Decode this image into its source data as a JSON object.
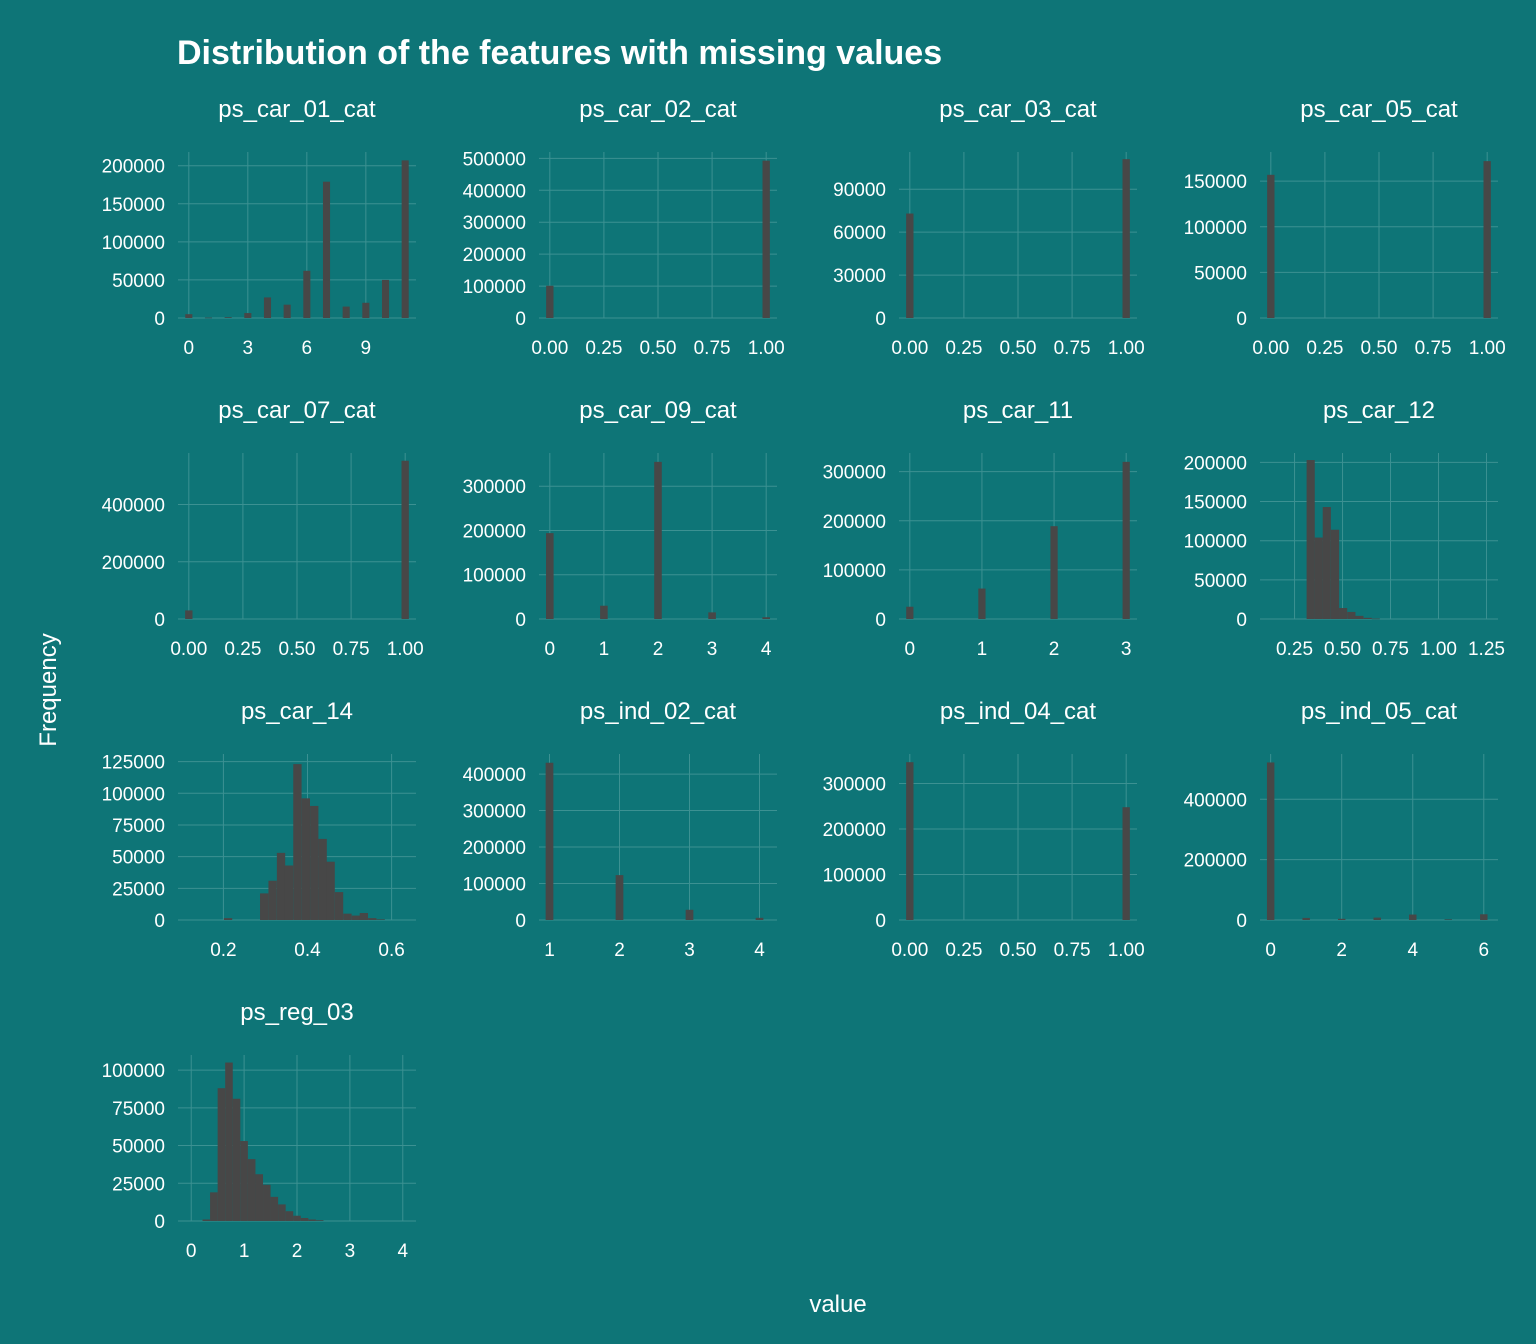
{
  "figure": {
    "title": "Distribution of the features with missing values",
    "xlabel": "value",
    "ylabel": "Frequency",
    "colors": {
      "background": "#0e7577",
      "bar": "#474747",
      "grid": "#3c9192",
      "text": "#ffffff"
    }
  },
  "chart_data": [
    {
      "type": "bar",
      "title": "ps_car_01_cat",
      "grid": true,
      "xlim": [
        -0.55,
        11.55
      ],
      "ylim": [
        0,
        218000
      ],
      "xticks": [
        0,
        3,
        6,
        9
      ],
      "xtick_labels": [
        "0",
        "3",
        "6",
        "9"
      ],
      "yticks": [
        0,
        50000,
        100000,
        150000,
        200000
      ],
      "ytick_labels": [
        "0",
        "50000",
        "100000",
        "150000",
        "200000"
      ],
      "bar_width": 0.36,
      "x": [
        0,
        1,
        2,
        3,
        4,
        5,
        6,
        7,
        8,
        9,
        10,
        11
      ],
      "values": [
        5000,
        500,
        1000,
        6500,
        27000,
        17500,
        62000,
        179000,
        15000,
        20000,
        50000,
        207000
      ]
    },
    {
      "type": "bar",
      "title": "ps_car_02_cat",
      "grid": true,
      "xlim": [
        -0.05,
        1.05
      ],
      "ylim": [
        0,
        520000
      ],
      "xticks": [
        0,
        0.25,
        0.5,
        0.75,
        1
      ],
      "xtick_labels": [
        "0.00",
        "0.25",
        "0.50",
        "0.75",
        "1.00"
      ],
      "yticks": [
        0,
        100000,
        200000,
        300000,
        400000,
        500000
      ],
      "ytick_labels": [
        "0",
        "100000",
        "200000",
        "300000",
        "400000",
        "500000"
      ],
      "bar_width": 0.034,
      "x": [
        0,
        1
      ],
      "values": [
        101000,
        493000
      ]
    },
    {
      "type": "bar",
      "title": "ps_car_03_cat",
      "grid": true,
      "xlim": [
        -0.05,
        1.05
      ],
      "ylim": [
        0,
        116000
      ],
      "xticks": [
        0,
        0.25,
        0.5,
        0.75,
        1
      ],
      "xtick_labels": [
        "0.00",
        "0.25",
        "0.50",
        "0.75",
        "1.00"
      ],
      "yticks": [
        0,
        30000,
        60000,
        90000
      ],
      "ytick_labels": [
        "0",
        "30000",
        "60000",
        "90000"
      ],
      "bar_width": 0.034,
      "x": [
        0,
        1
      ],
      "values": [
        73000,
        111000
      ]
    },
    {
      "type": "bar",
      "title": "ps_car_05_cat",
      "grid": true,
      "xlim": [
        -0.05,
        1.05
      ],
      "ylim": [
        0,
        182000
      ],
      "xticks": [
        0,
        0.25,
        0.5,
        0.75,
        1
      ],
      "xtick_labels": [
        "0.00",
        "0.25",
        "0.50",
        "0.75",
        "1.00"
      ],
      "yticks": [
        0,
        50000,
        100000,
        150000
      ],
      "ytick_labels": [
        "0",
        "50000",
        "100000",
        "150000"
      ],
      "bar_width": 0.034,
      "x": [
        0,
        1
      ],
      "values": [
        157000,
        172000
      ]
    },
    {
      "type": "bar",
      "title": "ps_car_07_cat",
      "grid": true,
      "xlim": [
        -0.05,
        1.05
      ],
      "ylim": [
        0,
        580000
      ],
      "xticks": [
        0,
        0.25,
        0.5,
        0.75,
        1
      ],
      "xtick_labels": [
        "0.00",
        "0.25",
        "0.50",
        "0.75",
        "1.00"
      ],
      "yticks": [
        0,
        200000,
        400000
      ],
      "ytick_labels": [
        "0",
        "200000",
        "400000"
      ],
      "bar_width": 0.034,
      "x": [
        0,
        1
      ],
      "values": [
        30000,
        553000
      ]
    },
    {
      "type": "bar",
      "title": "ps_car_09_cat",
      "grid": true,
      "xlim": [
        -0.2,
        4.2
      ],
      "ylim": [
        0,
        375000
      ],
      "xticks": [
        0,
        1,
        2,
        3,
        4
      ],
      "xtick_labels": [
        "0",
        "1",
        "2",
        "3",
        "4"
      ],
      "yticks": [
        0,
        100000,
        200000,
        300000
      ],
      "ytick_labels": [
        "0",
        "100000",
        "200000",
        "300000"
      ],
      "bar_width": 0.14,
      "x": [
        0,
        1,
        2,
        3,
        4
      ],
      "values": [
        194000,
        30000,
        355000,
        15000,
        4000
      ]
    },
    {
      "type": "bar",
      "title": "ps_car_11",
      "grid": true,
      "xlim": [
        -0.15,
        3.15
      ],
      "ylim": [
        0,
        338000
      ],
      "xticks": [
        0,
        1,
        2,
        3
      ],
      "xtick_labels": [
        "0",
        "1",
        "2",
        "3"
      ],
      "yticks": [
        0,
        100000,
        200000,
        300000
      ],
      "ytick_labels": [
        "0",
        "100000",
        "200000",
        "300000"
      ],
      "bar_width": 0.1,
      "x": [
        0,
        1,
        2,
        3
      ],
      "values": [
        25000,
        62000,
        189000,
        320000
      ]
    },
    {
      "type": "bar",
      "title": "ps_car_12",
      "grid": true,
      "xlim": [
        0.07,
        1.31
      ],
      "ylim": [
        0,
        212000
      ],
      "xticks": [
        0.25,
        0.5,
        0.75,
        1,
        1.25
      ],
      "xtick_labels": [
        "0.25",
        "0.50",
        "0.75",
        "1.00",
        "1.25"
      ],
      "yticks": [
        0,
        50000,
        100000,
        150000,
        200000
      ],
      "ytick_labels": [
        "0",
        "50000",
        "100000",
        "150000",
        "200000"
      ],
      "bar_width": 0.0425,
      "x": [
        0.334,
        0.376,
        0.418,
        0.461,
        0.503,
        0.546,
        0.588,
        0.631,
        0.673
      ],
      "values": [
        203000,
        104000,
        143000,
        114000,
        14000,
        9000,
        4000,
        1500,
        500
      ]
    },
    {
      "type": "bar",
      "title": "ps_car_14",
      "grid": true,
      "xlim": [
        0.092,
        0.658
      ],
      "ylim": [
        0,
        131000
      ],
      "xticks": [
        0.2,
        0.4,
        0.6
      ],
      "xtick_labels": [
        "0.2",
        "0.4",
        "0.6"
      ],
      "yticks": [
        0,
        25000,
        50000,
        75000,
        100000,
        125000
      ],
      "ytick_labels": [
        "0",
        "25000",
        "50000",
        "75000",
        "100000",
        "125000"
      ],
      "bar_width": 0.0198,
      "x": [
        0.211,
        0.297,
        0.317,
        0.337,
        0.356,
        0.376,
        0.396,
        0.416,
        0.436,
        0.455,
        0.475,
        0.495,
        0.515,
        0.534,
        0.554,
        0.574
      ],
      "values": [
        1500,
        21000,
        31000,
        53000,
        43000,
        123000,
        96000,
        90000,
        64000,
        46000,
        22000,
        5000,
        3500,
        5500,
        1500,
        500
      ]
    },
    {
      "type": "bar",
      "title": "ps_ind_02_cat",
      "grid": true,
      "xlim": [
        0.85,
        4.25
      ],
      "ylim": [
        0,
        455000
      ],
      "xticks": [
        1,
        2,
        3,
        4
      ],
      "xtick_labels": [
        "1",
        "2",
        "3",
        "4"
      ],
      "yticks": [
        0,
        100000,
        200000,
        300000,
        400000
      ],
      "ytick_labels": [
        "0",
        "100000",
        "200000",
        "300000",
        "400000"
      ],
      "bar_width": 0.11,
      "x": [
        1,
        2,
        3,
        4
      ],
      "values": [
        431000,
        123000,
        28000,
        6000
      ]
    },
    {
      "type": "bar",
      "title": "ps_ind_04_cat",
      "grid": true,
      "xlim": [
        -0.05,
        1.05
      ],
      "ylim": [
        0,
        365000
      ],
      "xticks": [
        0,
        0.25,
        0.5,
        0.75,
        1
      ],
      "xtick_labels": [
        "0.00",
        "0.25",
        "0.50",
        "0.75",
        "1.00"
      ],
      "yticks": [
        0,
        100000,
        200000,
        300000
      ],
      "ytick_labels": [
        "0",
        "100000",
        "200000",
        "300000"
      ],
      "bar_width": 0.034,
      "x": [
        0,
        1
      ],
      "values": [
        347000,
        248000
      ]
    },
    {
      "type": "bar",
      "title": "ps_ind_05_cat",
      "grid": true,
      "xlim": [
        -0.3,
        6.4
      ],
      "ylim": [
        0,
        550000
      ],
      "xticks": [
        0,
        2,
        4,
        6
      ],
      "xtick_labels": [
        "0",
        "2",
        "4",
        "6"
      ],
      "yticks": [
        0,
        200000,
        400000
      ],
      "ytick_labels": [
        "0",
        "200000",
        "400000"
      ],
      "bar_width": 0.21,
      "x": [
        0,
        1,
        2,
        3,
        4,
        5,
        6
      ],
      "values": [
        522000,
        7000,
        4000,
        8000,
        18000,
        2000,
        19000
      ]
    },
    {
      "type": "bar",
      "title": "ps_reg_03",
      "grid": true,
      "xlim": [
        -0.25,
        4.25
      ],
      "ylim": [
        0,
        110000
      ],
      "xticks": [
        0,
        1,
        2,
        3,
        4
      ],
      "xtick_labels": [
        "0",
        "1",
        "2",
        "3",
        "4"
      ],
      "yticks": [
        0,
        25000,
        50000,
        75000,
        100000
      ],
      "ytick_labels": [
        "0",
        "25000",
        "50000",
        "75000",
        "100000"
      ],
      "bar_width": 0.143,
      "x": [
        0.285,
        0.428,
        0.571,
        0.714,
        0.857,
        1.0,
        1.143,
        1.286,
        1.429,
        1.571,
        1.714,
        1.857,
        2.0,
        2.143,
        2.286,
        2.429
      ],
      "values": [
        1000,
        19000,
        88000,
        105000,
        81000,
        53000,
        41000,
        31000,
        24000,
        16000,
        11000,
        6500,
        3500,
        2000,
        1000,
        500
      ]
    }
  ]
}
